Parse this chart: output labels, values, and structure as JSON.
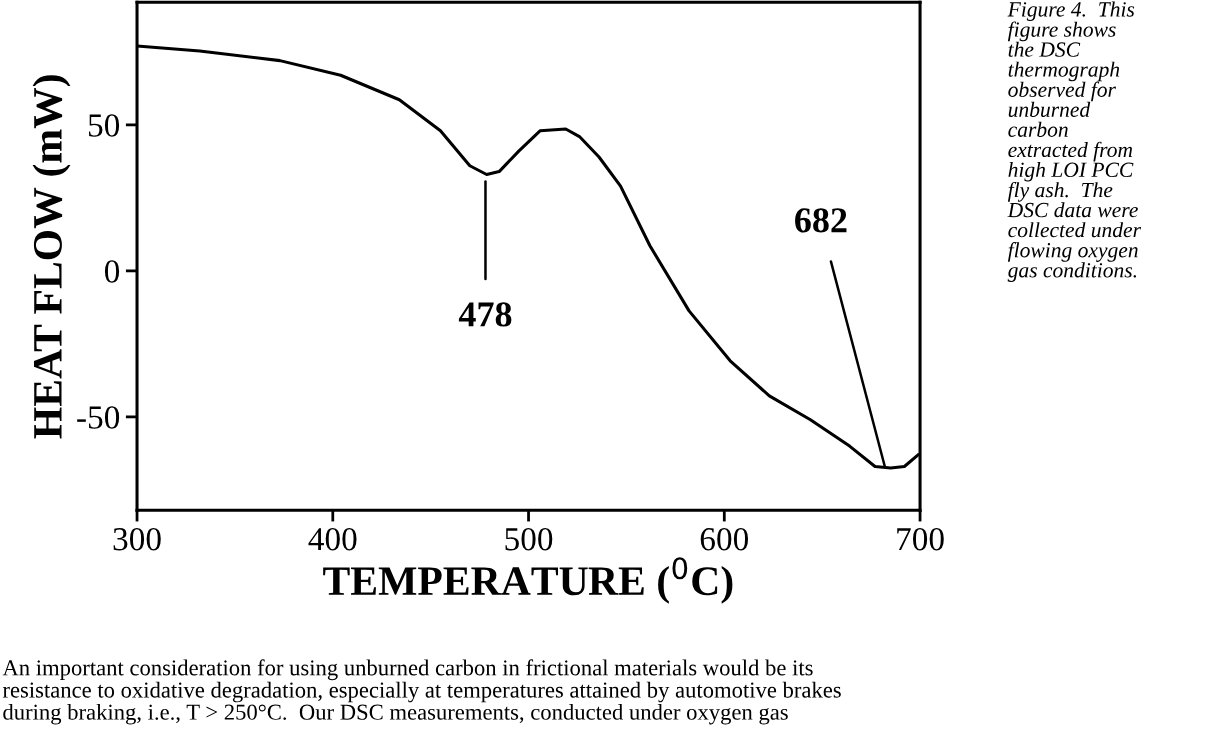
{
  "chart_data": {
    "type": "line",
    "xlabel": "TEMPERATURE ($^{0}$C)",
    "ylabel": "HEAT FLOW (mW)",
    "xlim": [
      300,
      700
    ],
    "xticks": [
      300,
      400,
      500,
      600,
      700
    ],
    "ylim": [
      -82,
      92
    ],
    "yticks": [
      -50,
      0,
      50
    ],
    "grid": false,
    "legend": false,
    "marker": "none",
    "line_style": "solid",
    "series": [
      {
        "color": "#000000",
        "x": [
          300,
          332,
          373,
          404,
          434,
          455,
          470,
          478.6,
          485,
          495,
          506,
          519,
          526,
          536,
          547,
          562,
          582,
          603,
          623,
          644,
          664,
          677,
          685,
          692,
          699
        ],
        "values": [
          77,
          75.3,
          72,
          67,
          58.6,
          48,
          36,
          33,
          34,
          41,
          48,
          48.6,
          46,
          39,
          29,
          8.6,
          -13.7,
          -30.8,
          -42.8,
          -51,
          -60,
          -67,
          -67.5,
          -67,
          -63
        ]
      }
    ],
    "annotations": [
      {
        "text": "478",
        "x": 478,
        "y": 33
      },
      {
        "text": "682",
        "x": 682,
        "y": -67
      },
      "Figure 4.  This\nfigure shows\nthe DSC\nthermograph\nobserved for\nunburned\ncarbon\nextracted from\nhigh LOI PCC\nfly ash.  The\nDSC data were\ncollected under\nflowing oxygen\ngas conditions.",
      "An important consideration for using unburned carbon in frictional materials would be its\nresistance to oxidative degradation, especially at temperatures attained by automotive brakes\nduring braking, i.e., T > 250°C.  Our DSC measurements, conducted under oxygen gas"
    ]
  }
}
